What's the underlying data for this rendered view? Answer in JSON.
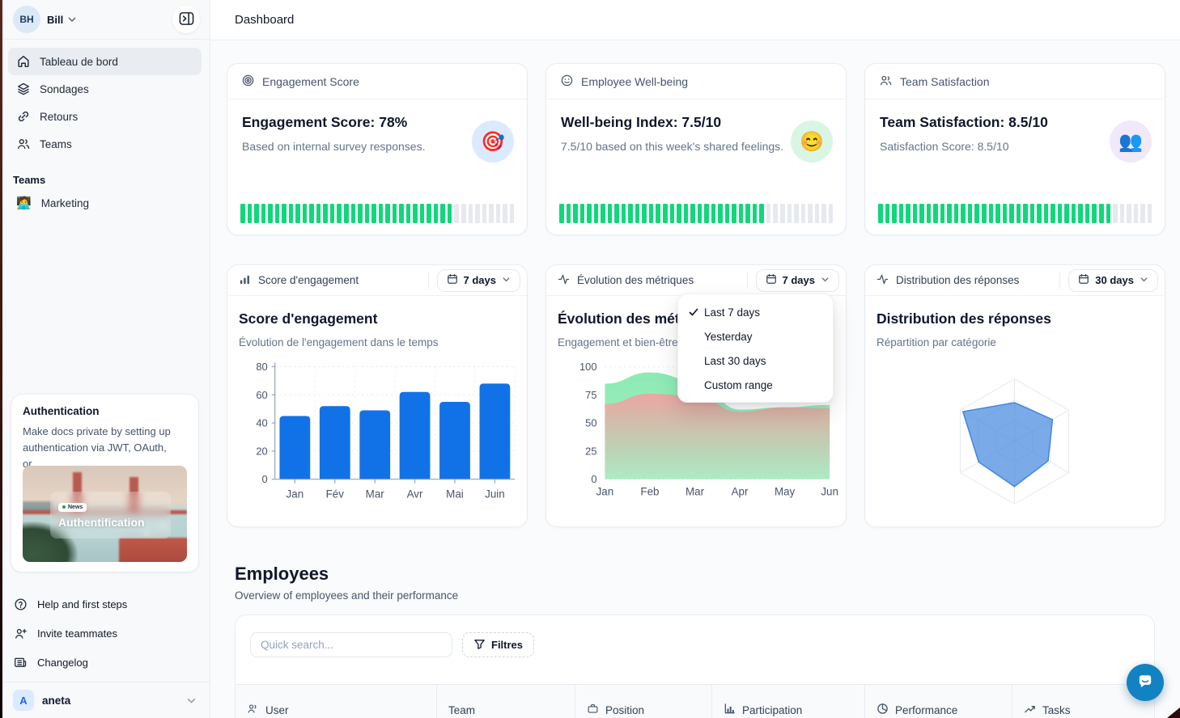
{
  "sidebar": {
    "user": {
      "initials": "BH",
      "name": "Bill"
    },
    "nav": [
      {
        "label": "Tableau de bord",
        "icon": "home-icon",
        "active": true
      },
      {
        "label": "Sondages",
        "icon": "layers-icon"
      },
      {
        "label": "Retours",
        "icon": "link-icon"
      },
      {
        "label": "Teams",
        "icon": "users-icon"
      }
    ],
    "teams_section": {
      "label": "Teams",
      "items": [
        {
          "label": "Marketing",
          "emoji": "🧑‍💻"
        }
      ]
    },
    "promo_card": {
      "title": "Authentication",
      "body": "Make docs private by setting up authentication via JWT, OAuth, or...",
      "badge": "News",
      "image_caption": "Authentification"
    },
    "footer": [
      {
        "label": "Help and first steps",
        "icon": "help-icon"
      },
      {
        "label": "Invite teammates",
        "icon": "user-plus-icon"
      },
      {
        "label": "Changelog",
        "icon": "newspaper-icon"
      }
    ],
    "account": {
      "initial": "A",
      "name": "aneta"
    }
  },
  "topbar": {
    "title": "Dashboard"
  },
  "stat_cards": [
    {
      "header": "Engagement Score",
      "icon": "target-icon",
      "title": "Engagement Score: 78%",
      "subtitle": "Based on internal survey responses.",
      "emoji": "🎯",
      "emoji_bg": "#dbeafe",
      "segments_total": 40,
      "segments_filled": 31
    },
    {
      "header": "Employee Well-being",
      "icon": "smile-icon",
      "title": "Well-being Index: 7.5/10",
      "subtitle": "7.5/10 based on this week's shared feelings.",
      "emoji": "😊",
      "emoji_bg": "#d9f6e5",
      "segments_total": 40,
      "segments_filled": 30
    },
    {
      "header": "Team Satisfaction",
      "icon": "users-icon",
      "title": "Team Satisfaction: 8.5/10",
      "subtitle": "Satisfaction Score: 8.5/10",
      "emoji": "👥",
      "emoji_bg": "#f1e8fa",
      "segments_total": 40,
      "segments_filled": 34
    }
  ],
  "segment_colors": {
    "filled": "#0fd87b",
    "empty": "#e6e9ed"
  },
  "chart_cards": [
    {
      "header": "Score d'engagement",
      "header_icon": "bar-chart-icon",
      "range_label": "7 days",
      "title": "Score d'engagement",
      "subtitle": "Évolution de l'engagement dans le temps"
    },
    {
      "header": "Évolution des métriques",
      "header_icon": "activity-icon",
      "range_label": "7 days",
      "title": "Évolution des métriques",
      "subtitle": "Engagement et bien-être"
    },
    {
      "header": "Distribution des réponses",
      "header_icon": "activity-icon",
      "range_label": "30 days",
      "title": "Distribution des réponses",
      "subtitle": "Répartition par catégorie"
    }
  ],
  "range_menu": {
    "items": [
      {
        "label": "Last 7 days",
        "checked": true
      },
      {
        "label": "Yesterday",
        "checked": false
      },
      {
        "label": "Last 30 days",
        "checked": false
      },
      {
        "label": "Custom range",
        "checked": false
      }
    ]
  },
  "chart_data": [
    {
      "type": "bar",
      "title": "Score d'engagement",
      "categories": [
        "Jan",
        "Fév",
        "Mar",
        "Avr",
        "Mai",
        "Juin"
      ],
      "values": [
        45,
        52,
        49,
        62,
        55,
        68
      ],
      "ylim": [
        0,
        80
      ],
      "yticks": [
        0,
        20,
        40,
        60,
        80
      ],
      "bar_color": "#1172e8",
      "grid": true,
      "legend": false
    },
    {
      "type": "area",
      "title": "Évolution des métriques",
      "x": [
        "Jan",
        "Feb",
        "Mar",
        "Apr",
        "May",
        "Jun"
      ],
      "series": [
        {
          "name": "engagement",
          "color": "#8ceab4",
          "values": [
            85,
            95,
            88,
            62,
            64,
            66
          ]
        },
        {
          "name": "bien-être",
          "color": "#f0a3a1",
          "values": [
            67,
            76,
            74,
            60,
            64,
            63
          ]
        }
      ],
      "ylim": [
        0,
        100
      ],
      "yticks": [
        0,
        25,
        50,
        75,
        100
      ],
      "grid": true,
      "legend": false
    },
    {
      "type": "radar",
      "title": "Distribution des réponses",
      "axes": 6,
      "max": 1,
      "values": [
        0.62,
        0.7,
        0.62,
        0.72,
        0.66,
        0.95
      ],
      "fill": "rgba(77,142,224,0.75)",
      "stroke": "#3f87e0",
      "rings": 3
    }
  ],
  "employees": {
    "title": "Employees",
    "subtitle": "Overview of employees and their performance",
    "search_placeholder": "Quick search...",
    "filter_label": "Filtres",
    "columns": [
      {
        "label": "User",
        "icon": "users-icon"
      },
      {
        "label": "Team",
        "icon": ""
      },
      {
        "label": "Position",
        "icon": "briefcase-icon"
      },
      {
        "label": "Participation",
        "icon": "bar-chart-icon"
      },
      {
        "label": "Performance",
        "icon": "pie-chart-icon"
      },
      {
        "label": "Tasks",
        "icon": "trend-up-icon"
      }
    ]
  },
  "colors": {
    "accent_blue": "#1172e8",
    "green": "#0fd87b",
    "chat_blue": "#1382c3"
  }
}
